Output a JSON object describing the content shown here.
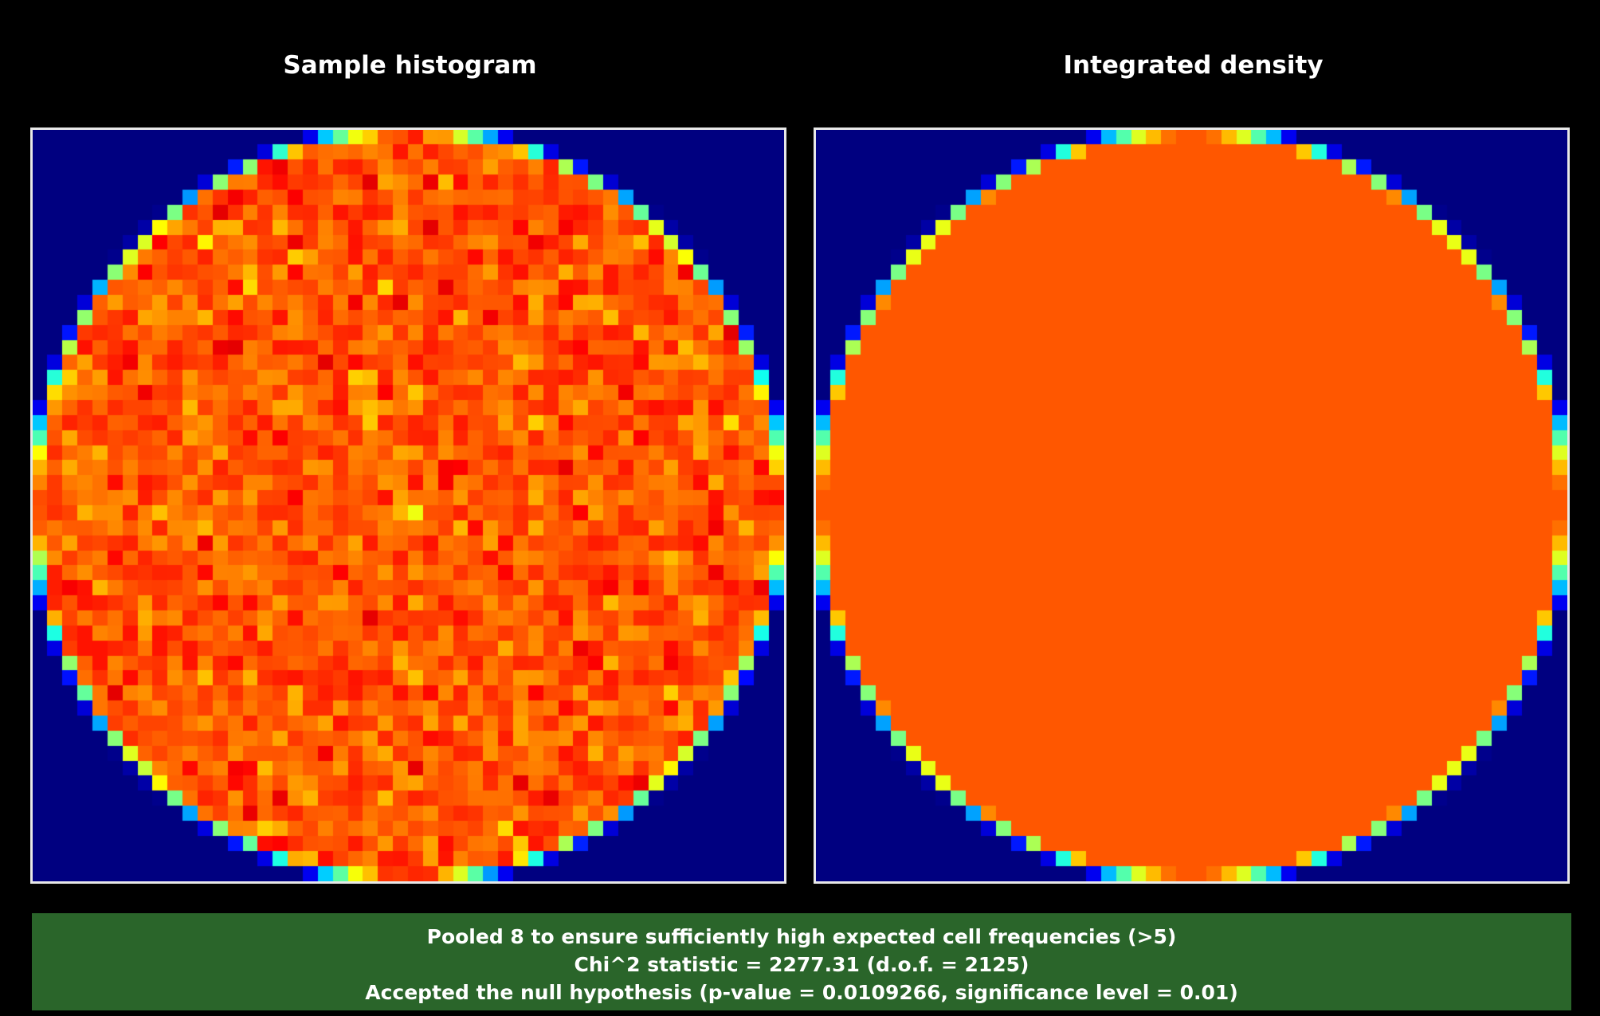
{
  "chart_data": [
    {
      "type": "heatmap",
      "title": "Sample histogram",
      "description_of_values": "2D histogram of samples uniformly distributed on a disk; 50x50 grid, noisy orange/red interior, blue outside",
      "grid": [
        50,
        50
      ],
      "colormap": "jet",
      "mode": "noisy"
    },
    {
      "type": "heatmap",
      "title": "Integrated density",
      "description_of_values": "Analytic integrated density of uniform disk on 50x50 grid; constant inside, partial values on the rim",
      "grid": [
        50,
        50
      ],
      "colormap": "jet",
      "mode": "smooth"
    }
  ],
  "panels": {
    "left_title": "Sample histogram",
    "right_title": "Integrated density"
  },
  "status": {
    "line1": "Pooled 8 to ensure sufficiently high expected cell frequencies (>5)",
    "line2": "Chi^2 statistic = 2277.31 (d.o.f. = 2125)",
    "line3": "Accepted the null hypothesis (p-value = 0.0109266, significance level = 0.01)",
    "color": "#2a652a"
  }
}
